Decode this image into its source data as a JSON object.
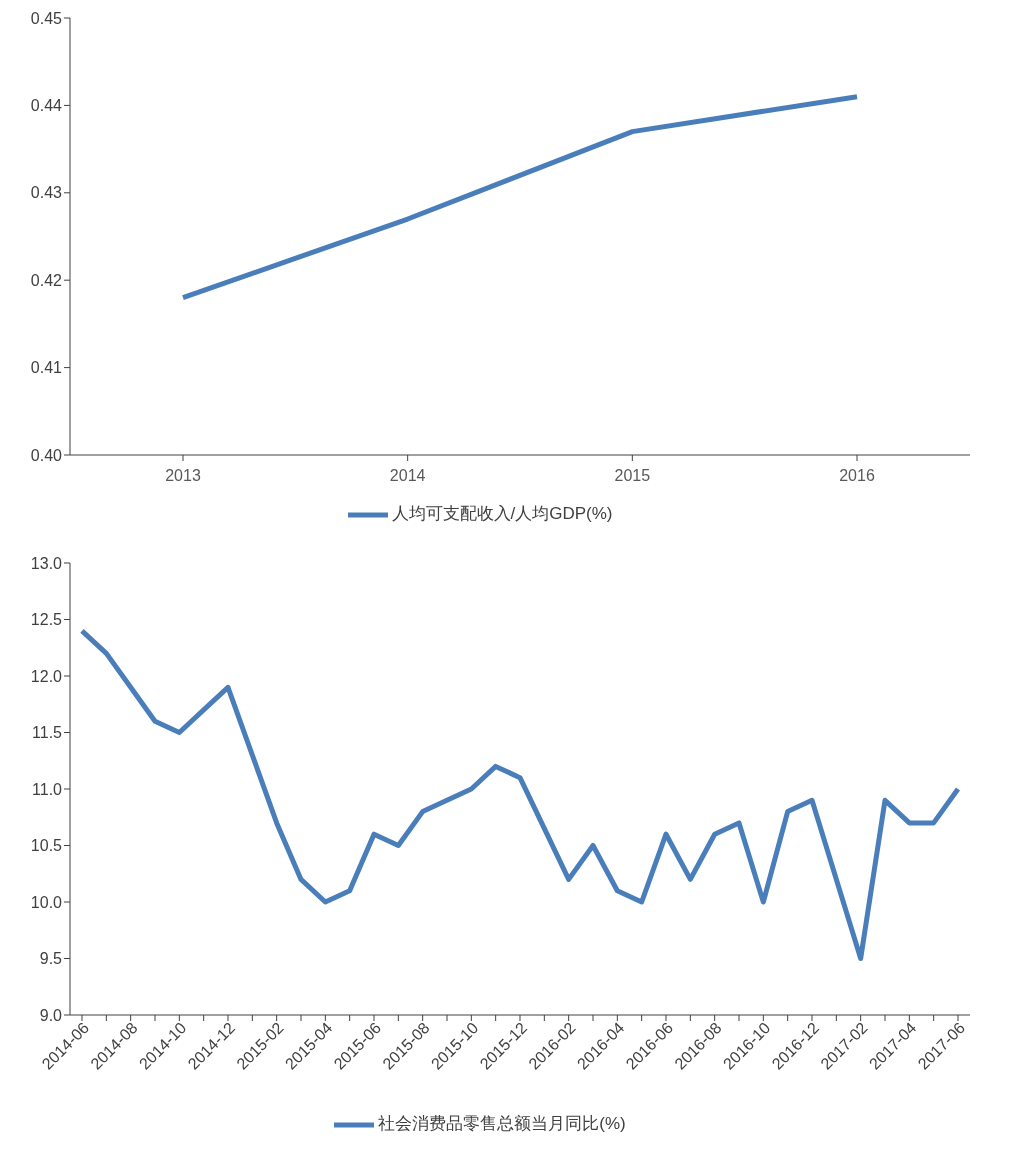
{
  "chart_data": [
    {
      "type": "line",
      "categories": [
        "2013",
        "2014",
        "2015",
        "2016"
      ],
      "series": [
        {
          "name": "人均可支配收入/人均GDP(%)",
          "color": "#4a7ebb",
          "values": [
            0.418,
            0.427,
            0.437,
            0.441
          ]
        }
      ],
      "ylim": [
        0.4,
        0.45
      ],
      "yticks": [
        {
          "value": 0.4,
          "label": "0.40"
        },
        0.41,
        0.42,
        0.43,
        0.44,
        0.45
      ],
      "legend": "bottom"
    },
    {
      "type": "line",
      "categories": [
        "2014-06",
        null,
        "2014-08",
        null,
        "2014-10",
        null,
        "2014-12",
        null,
        "2015-02",
        null,
        "2015-04",
        null,
        "2015-06",
        null,
        "2015-08",
        null,
        "2015-10",
        null,
        "2015-12",
        null,
        "2016-02",
        null,
        "2016-04",
        null,
        "2016-06",
        null,
        "2016-08",
        null,
        "2016-10",
        null,
        "2016-12",
        null,
        "2017-02",
        null,
        "2017-04",
        null,
        "2017-06"
      ],
      "series": [
        {
          "name": "社会消费品零售总额当月同比(%)",
          "color": "#4a7ebb",
          "values": [
            12.4,
            12.2,
            11.9,
            11.6,
            11.5,
            11.7,
            11.9,
            null,
            10.7,
            10.2,
            10.0,
            10.1,
            10.6,
            10.5,
            10.8,
            10.9,
            11.0,
            11.2,
            11.1,
            null,
            10.2,
            10.5,
            10.1,
            10.0,
            10.6,
            10.2,
            10.6,
            10.7,
            10.0,
            10.8,
            10.9,
            null,
            9.5,
            10.9,
            10.7,
            10.7,
            11.0
          ]
        }
      ],
      "ylim": [
        9.0,
        13.0
      ],
      "yticks": [
        {
          "value": 9,
          "label": "9.0"
        },
        9.5,
        {
          "value": 10,
          "label": "10.0"
        },
        10.5,
        {
          "value": 11,
          "label": "11.0"
        },
        11.5,
        {
          "value": 12,
          "label": "12.0"
        },
        12.5,
        {
          "value": 13,
          "label": "13.0"
        }
      ],
      "legend": "bottom"
    }
  ]
}
